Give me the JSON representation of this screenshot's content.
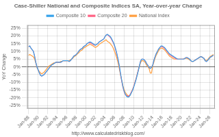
{
  "chart_data": {
    "type": "line",
    "title": "Case-Shiller National and Composite Indices SA, Year-over-year Change",
    "ylabel": "YoY Change",
    "annotation": "http://www.calculatedriskblog.com/",
    "x": [
      1988,
      1988.25,
      1988.5,
      1988.75,
      1989,
      1989.25,
      1989.5,
      1989.75,
      1990,
      1990.25,
      1990.5,
      1990.75,
      1991,
      1991.25,
      1991.5,
      1991.75,
      1992,
      1992.25,
      1992.5,
      1992.75,
      1993,
      1993.25,
      1993.5,
      1993.75,
      1994,
      1994.25,
      1994.5,
      1994.75,
      1995,
      1995.25,
      1995.5,
      1995.75,
      1996,
      1996.25,
      1996.5,
      1996.75,
      1997,
      1997.25,
      1997.5,
      1997.75,
      1998,
      1998.25,
      1998.5,
      1998.75,
      1999,
      1999.25,
      1999.5,
      1999.75,
      2000,
      2000.25,
      2000.5,
      2000.75,
      2001,
      2001.25,
      2001.5,
      2001.75,
      2002,
      2002.25,
      2002.5,
      2002.75,
      2003,
      2003.25,
      2003.5,
      2003.75,
      2004,
      2004.25,
      2004.5,
      2004.75,
      2005,
      2005.25,
      2005.5,
      2005.75,
      2006,
      2006.25,
      2006.5,
      2006.75,
      2007,
      2007.25,
      2007.5,
      2007.75,
      2008,
      2008.25,
      2008.5,
      2008.75,
      2009,
      2009.25,
      2009.5,
      2009.75,
      2010,
      2010.25,
      2010.5,
      2010.75,
      2011,
      2011.25,
      2011.5,
      2011.75,
      2012,
      2012.25,
      2012.5,
      2012.75,
      2013,
      2013.25,
      2013.5,
      2013.75,
      2014,
      2014.25,
      2014.5,
      2014.75,
      2015,
      2015.25,
      2015.5,
      2015.75,
      2016,
      2016.25,
      2016.5,
      2016.75,
      2017,
      2017.25,
      2017.5,
      2017.75,
      2018,
      2018.25,
      2018.5,
      2018.75,
      2019,
      2019.25,
      2019.5,
      2019.75,
      2020,
      2020.25,
      2020.5,
      2020.75,
      2021,
      2021.25,
      2021.5,
      2021.75,
      2022,
      2022.25,
      2022.5,
      2022.75,
      2023,
      2023.25,
      2023.5,
      2023.75,
      2024,
      2024.25,
      2024.5,
      2024.75,
      2025,
      2025.25,
      2025.5,
      2025.75,
      2026,
      2026.25,
      2026.5,
      2026.75
    ],
    "series": [
      {
        "name": "Composite 10",
        "values": [
          0.13,
          0.135,
          0.12,
          0.11,
          0.1,
          0.07,
          0.03,
          0.0,
          -0.02,
          -0.04,
          -0.055,
          -0.06,
          -0.055,
          -0.05,
          -0.04,
          -0.03,
          -0.02,
          -0.01,
          0.0,
          0.01,
          0.015,
          0.02,
          0.025,
          0.03,
          0.03,
          0.03,
          0.03,
          0.03,
          0.035,
          0.04,
          0.04,
          0.04,
          0.04,
          0.04,
          0.035,
          0.04,
          0.05,
          0.06,
          0.07,
          0.075,
          0.08,
          0.09,
          0.1,
          0.11,
          0.115,
          0.12,
          0.13,
          0.135,
          0.14,
          0.15,
          0.155,
          0.16,
          0.16,
          0.155,
          0.15,
          0.145,
          0.14,
          0.145,
          0.15,
          0.16,
          0.165,
          0.17,
          0.175,
          0.18,
          0.195,
          0.205,
          0.21,
          0.205,
          0.2,
          0.19,
          0.175,
          0.16,
          0.14,
          0.115,
          0.085,
          0.05,
          0.01,
          -0.04,
          -0.085,
          -0.125,
          -0.155,
          -0.175,
          -0.19,
          -0.195,
          -0.195,
          -0.185,
          -0.17,
          -0.155,
          -0.135,
          -0.11,
          -0.085,
          -0.055,
          -0.025,
          0.01,
          0.04,
          0.05,
          0.05,
          0.045,
          0.035,
          0.02,
          0.01,
          -0.005,
          -0.01,
          -0.005,
          0.01,
          0.04,
          0.065,
          0.085,
          0.1,
          0.115,
          0.125,
          0.135,
          0.135,
          0.13,
          0.125,
          0.115,
          0.105,
          0.095,
          0.085,
          0.08,
          0.075,
          0.07,
          0.065,
          0.06,
          0.055,
          0.05,
          0.05,
          0.05,
          0.05,
          0.05,
          0.05,
          0.055,
          0.06,
          0.06,
          0.055,
          0.05,
          0.04,
          0.035,
          0.035,
          0.04,
          0.045,
          0.05,
          0.055,
          0.06,
          0.065,
          0.065,
          0.06,
          0.055,
          0.04,
          0.035,
          0.04,
          0.05,
          0.06,
          0.065,
          0.07,
          0.075
        ]
      },
      {
        "name": "Composite 20",
        "values": [
          0.13,
          0.135,
          0.12,
          0.11,
          0.1,
          0.07,
          0.03,
          0.0,
          -0.02,
          -0.04,
          -0.055,
          -0.06,
          -0.055,
          -0.05,
          -0.04,
          -0.03,
          -0.02,
          -0.01,
          0.0,
          0.01,
          0.015,
          0.02,
          0.025,
          0.03,
          0.03,
          0.03,
          0.03,
          0.03,
          0.035,
          0.04,
          0.04,
          0.04,
          0.04,
          0.04,
          0.035,
          0.04,
          0.05,
          0.06,
          0.07,
          0.075,
          0.08,
          0.09,
          0.1,
          0.11,
          0.115,
          0.12,
          0.13,
          0.135,
          0.14,
          0.15,
          0.155,
          0.155,
          0.155,
          0.15,
          0.145,
          0.14,
          0.14,
          0.145,
          0.15,
          0.16,
          0.165,
          0.17,
          0.175,
          0.18,
          0.195,
          0.205,
          0.21,
          0.2,
          0.195,
          0.185,
          0.17,
          0.155,
          0.135,
          0.11,
          0.08,
          0.045,
          0.005,
          -0.045,
          -0.09,
          -0.13,
          -0.16,
          -0.18,
          -0.185,
          -0.19,
          -0.19,
          -0.18,
          -0.165,
          -0.15,
          -0.13,
          -0.105,
          -0.08,
          -0.05,
          -0.02,
          0.01,
          0.04,
          0.05,
          0.05,
          0.045,
          0.035,
          0.02,
          0.01,
          -0.005,
          -0.01,
          -0.005,
          0.01,
          0.04,
          0.065,
          0.085,
          0.1,
          0.115,
          0.125,
          0.13,
          0.13,
          0.125,
          0.12,
          0.11,
          0.1,
          0.09,
          0.08,
          0.075,
          0.07,
          0.065,
          0.06,
          0.055,
          0.05,
          0.05,
          0.05,
          0.05,
          0.05,
          0.05,
          0.05,
          0.055,
          0.06,
          0.06,
          0.055,
          0.05,
          0.04,
          0.035,
          0.035,
          0.04,
          0.045,
          0.05,
          0.055,
          0.06,
          0.065,
          0.065,
          0.06,
          0.055,
          0.04,
          0.035,
          0.04,
          0.05,
          0.06,
          0.065,
          0.07,
          0.075
        ]
      },
      {
        "name": "National Index",
        "values": [
          0.075,
          0.08,
          0.075,
          0.07,
          0.065,
          0.05,
          0.025,
          -0.005,
          -0.02,
          -0.03,
          -0.04,
          -0.045,
          -0.04,
          -0.035,
          -0.025,
          -0.015,
          -0.005,
          0.005,
          0.01,
          0.015,
          0.02,
          0.025,
          0.025,
          0.03,
          0.03,
          0.03,
          0.03,
          0.035,
          0.035,
          0.04,
          0.04,
          0.04,
          0.04,
          0.04,
          0.04,
          0.045,
          0.05,
          0.055,
          0.065,
          0.07,
          0.075,
          0.085,
          0.09,
          0.1,
          0.105,
          0.11,
          0.12,
          0.125,
          0.13,
          0.135,
          0.14,
          0.145,
          0.145,
          0.14,
          0.135,
          0.13,
          0.125,
          0.13,
          0.135,
          0.145,
          0.15,
          0.155,
          0.16,
          0.165,
          0.17,
          0.175,
          0.165,
          0.16,
          0.155,
          0.145,
          0.135,
          0.12,
          0.1,
          0.08,
          0.055,
          0.025,
          -0.01,
          -0.05,
          -0.085,
          -0.12,
          -0.145,
          -0.165,
          -0.175,
          -0.185,
          -0.19,
          -0.185,
          -0.17,
          -0.15,
          -0.13,
          -0.105,
          -0.08,
          -0.05,
          -0.02,
          0.005,
          0.03,
          0.04,
          0.04,
          0.035,
          0.025,
          0.01,
          0.0,
          -0.01,
          -0.04,
          -0.04,
          0.005,
          0.03,
          0.055,
          0.075,
          0.09,
          0.105,
          0.115,
          0.12,
          0.12,
          0.115,
          0.11,
          0.1,
          0.09,
          0.08,
          0.07,
          0.065,
          0.06,
          0.055,
          0.05,
          0.05,
          0.05,
          0.05,
          0.05,
          0.05,
          0.05,
          0.05,
          0.05,
          0.055,
          0.055,
          0.055,
          0.05,
          0.045,
          0.04,
          0.035,
          0.035,
          0.04,
          0.045,
          0.05,
          0.055,
          0.06,
          0.065,
          0.065,
          0.06,
          0.055,
          0.045,
          0.04,
          0.045,
          0.055,
          0.065,
          0.07,
          0.075,
          0.08
        ]
      }
    ],
    "xlim": [
      1987.7,
      2027.05
    ],
    "xticks": [
      {
        "value": 1988,
        "label": "Jan-88"
      },
      {
        "value": 1990,
        "label": "Jan-90"
      },
      {
        "value": 1992,
        "label": "Jan-92"
      },
      {
        "value": 1994,
        "label": "Jan-94"
      },
      {
        "value": 1996,
        "label": "Jan-96"
      },
      {
        "value": 1998,
        "label": "Jan-98"
      },
      {
        "value": 2000,
        "label": "Jan-00"
      },
      {
        "value": 2002,
        "label": "Jan-02"
      },
      {
        "value": 2004,
        "label": "Jan-04"
      },
      {
        "value": 2006,
        "label": "Jan-06"
      },
      {
        "value": 2008,
        "label": "Jan-08"
      },
      {
        "value": 2010,
        "label": "Jan-10"
      },
      {
        "value": 2012,
        "label": "Jan-12"
      },
      {
        "value": 2014,
        "label": "Jan-14"
      },
      {
        "value": 2016,
        "label": "Jan-16"
      },
      {
        "value": 2018,
        "label": "Jan-18"
      },
      {
        "value": 2020,
        "label": "Jan-20"
      },
      {
        "value": 2022,
        "label": "Jan-22"
      },
      {
        "value": 2024,
        "label": "Jan-24"
      },
      {
        "value": 2026,
        "label": "Jan-26"
      }
    ],
    "ylim": [
      -0.27,
      0.27
    ],
    "yticks": [
      {
        "value": -0.25,
        "label": "-25%"
      },
      {
        "value": -0.2,
        "label": "-20%"
      },
      {
        "value": -0.15,
        "label": "-15%"
      },
      {
        "value": -0.1,
        "label": "-10%"
      },
      {
        "value": -0.05,
        "label": "-5%"
      },
      {
        "value": 0.0,
        "label": "0%"
      },
      {
        "value": 0.05,
        "label": "5%"
      },
      {
        "value": 0.1,
        "label": "10%"
      },
      {
        "value": 0.15,
        "label": "15%"
      },
      {
        "value": 0.2,
        "label": "20%"
      },
      {
        "value": 0.25,
        "label": "25%"
      }
    ],
    "grid": true,
    "legend": "top"
  }
}
